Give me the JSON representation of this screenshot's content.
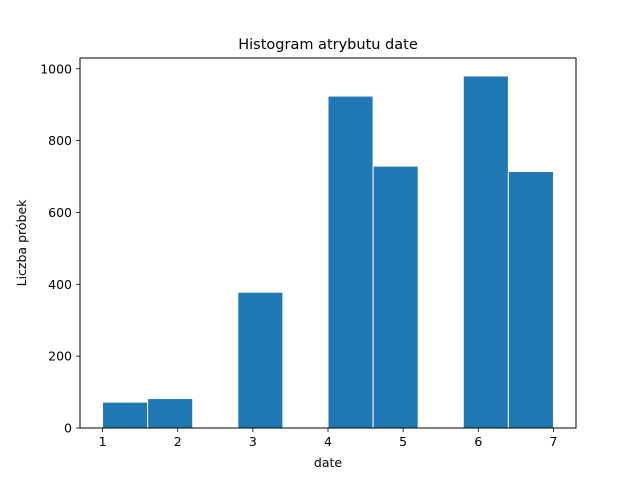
{
  "chart_data": {
    "type": "bar",
    "title": "Histogram atrybutu date",
    "xlabel": "date",
    "ylabel": "Liczba próbek",
    "xlim": [
      0.7,
      7.3
    ],
    "ylim": [
      0,
      1030
    ],
    "xticks": [
      1,
      2,
      3,
      4,
      5,
      6,
      7
    ],
    "yticks": [
      0,
      200,
      400,
      600,
      800,
      1000
    ],
    "bins": [
      {
        "start": 1.0,
        "end": 1.6,
        "value": 72
      },
      {
        "start": 1.6,
        "end": 2.2,
        "value": 82
      },
      {
        "start": 2.2,
        "end": 2.8,
        "value": 0
      },
      {
        "start": 2.8,
        "end": 3.4,
        "value": 378
      },
      {
        "start": 3.4,
        "end": 4.0,
        "value": 0
      },
      {
        "start": 4.0,
        "end": 4.6,
        "value": 924
      },
      {
        "start": 4.6,
        "end": 5.2,
        "value": 729
      },
      {
        "start": 5.2,
        "end": 5.8,
        "value": 0
      },
      {
        "start": 5.8,
        "end": 6.4,
        "value": 980
      },
      {
        "start": 6.4,
        "end": 7.0,
        "value": 714
      }
    ],
    "bar_color": "#1f77b4",
    "edge_color": "#ffffff",
    "grid": false,
    "legend": "none"
  }
}
